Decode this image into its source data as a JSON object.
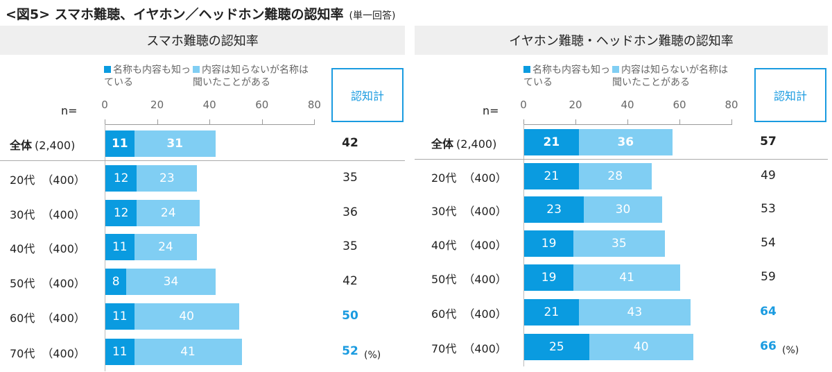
{
  "title": "<図5> スマホ難聴、イヤホン／ヘッドホン難聴の認知率",
  "subtitle": "(単一回答)",
  "colors": {
    "known_both": "#0a9be0",
    "known_name": "#80cef3",
    "highlight": "#1a9be0"
  },
  "chart_data": [
    {
      "type": "bar",
      "orientation": "horizontal",
      "stacked": true,
      "title": "スマホ難聴の認知率",
      "xlim": [
        0,
        80
      ],
      "ticks": [
        "0",
        "20",
        "40",
        "60",
        "80"
      ],
      "n_label": "n=",
      "total_header": "認知計",
      "unit": "(%)",
      "legend": [
        "名称も内容も知っている",
        "内容は知らないが名称は聞いたことがある"
      ],
      "categories": [
        "全体",
        "20代",
        "30代",
        "40代",
        "50代",
        "60代",
        "70代"
      ],
      "n": [
        "(2,400)",
        "（400）",
        "（400）",
        "（400）",
        "（400）",
        "（400）",
        "（400）"
      ],
      "series": [
        {
          "name": "名称も内容も知っている",
          "values": [
            11,
            12,
            12,
            11,
            8,
            11,
            11
          ]
        },
        {
          "name": "内容は知らないが名称は聞いたことがある",
          "values": [
            31,
            23,
            24,
            24,
            34,
            40,
            41
          ]
        }
      ],
      "totals": [
        42,
        35,
        36,
        35,
        42,
        50,
        52
      ],
      "highlighted_totals": [
        50,
        52
      ]
    },
    {
      "type": "bar",
      "orientation": "horizontal",
      "stacked": true,
      "title": "イヤホン難聴・ヘッドホン難聴の認知率",
      "xlim": [
        0,
        80
      ],
      "ticks": [
        "0",
        "20",
        "40",
        "60",
        "80"
      ],
      "n_label": "n=",
      "total_header": "認知計",
      "unit": "(%)",
      "legend": [
        "名称も内容も知っている",
        "内容は知らないが名称は聞いたことがある"
      ],
      "categories": [
        "全体",
        "20代",
        "30代",
        "40代",
        "50代",
        "60代",
        "70代"
      ],
      "n": [
        "(2,400)",
        "（400）",
        "（400）",
        "（400）",
        "（400）",
        "（400）",
        "（400）"
      ],
      "series": [
        {
          "name": "名称も内容も知っている",
          "values": [
            21,
            21,
            23,
            19,
            19,
            21,
            25
          ]
        },
        {
          "name": "内容は知らないが名称は聞いたことがある",
          "values": [
            36,
            28,
            30,
            35,
            41,
            43,
            40
          ]
        }
      ],
      "totals": [
        57,
        49,
        53,
        54,
        59,
        64,
        66
      ],
      "highlighted_totals": [
        64,
        66
      ]
    }
  ]
}
